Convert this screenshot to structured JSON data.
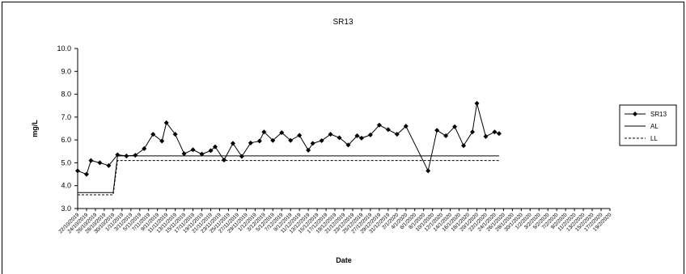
{
  "chart_data": {
    "type": "line",
    "title": "SR13",
    "xlabel": "Date",
    "ylabel": "mg/L",
    "ylim": [
      3.0,
      10.0
    ],
    "ytick_labels": [
      "3.0",
      "4.0",
      "5.0",
      "6.0",
      "7.0",
      "8.0",
      "9.0",
      "10.0"
    ],
    "grid": false,
    "legend_position": "right",
    "categories": [
      "22/10/2019",
      "24/10/2019",
      "26/10/2019",
      "28/10/2019",
      "30/10/2019",
      "1/11/2019",
      "3/11/2019",
      "5/11/2019",
      "7/11/2019",
      "9/11/2019",
      "11/11/2019",
      "13/11/2019",
      "15/11/2019",
      "17/11/2019",
      "19/11/2019",
      "21/11/2019",
      "23/11/2019",
      "25/11/2019",
      "27/11/2019",
      "29/11/2019",
      "1/12/2019",
      "3/12/2019",
      "5/12/2019",
      "7/12/2019",
      "9/12/2019",
      "11/12/2019",
      "13/12/2019",
      "15/12/2019",
      "17/12/2019",
      "19/12/2019",
      "21/12/2019",
      "23/12/2019",
      "25/12/2019",
      "27/12/2019",
      "29/12/2019",
      "31/12/2019",
      "2/1/2020",
      "4/1/2020",
      "6/1/2020",
      "8/1/2020",
      "10/1/2020",
      "12/1/2020",
      "14/1/2020",
      "16/1/2020",
      "18/1/2020",
      "20/1/2020",
      "22/1/2020",
      "24/1/2020",
      "26/1/2020",
      "28/1/2020",
      "30/1/2020",
      "1/2/2020",
      "3/2/2020",
      "5/2/2020",
      "7/2/2020",
      "9/2/2020",
      "11/2/2020",
      "13/2/2020",
      "15/2/2020",
      "17/2/2020",
      "19/2/2020"
    ],
    "series": [
      {
        "name": "SR13",
        "style": "line-diamond",
        "color": "#000000",
        "points": [
          [
            "22/10/2019",
            4.65
          ],
          [
            "24/10/2019",
            4.5
          ],
          [
            "25/10/2019",
            5.1
          ],
          [
            "27/10/2019",
            5.0
          ],
          [
            "29/10/2019",
            4.88
          ],
          [
            "31/10/2019",
            5.35
          ],
          [
            "2/11/2019",
            5.3
          ],
          [
            "4/11/2019",
            5.33
          ],
          [
            "6/11/2019",
            5.62
          ],
          [
            "8/11/2019",
            6.25
          ],
          [
            "10/11/2019",
            5.95
          ],
          [
            "11/11/2019",
            6.75
          ],
          [
            "13/11/2019",
            6.25
          ],
          [
            "15/11/2019",
            5.4
          ],
          [
            "17/11/2019",
            5.57
          ],
          [
            "19/11/2019",
            5.38
          ],
          [
            "21/11/2019",
            5.53
          ],
          [
            "22/11/2019",
            5.7
          ],
          [
            "24/11/2019",
            5.12
          ],
          [
            "26/11/2019",
            5.85
          ],
          [
            "28/11/2019",
            5.28
          ],
          [
            "30/11/2019",
            5.87
          ],
          [
            "2/12/2019",
            5.95
          ],
          [
            "3/12/2019",
            6.35
          ],
          [
            "5/12/2019",
            5.98
          ],
          [
            "7/12/2019",
            6.32
          ],
          [
            "9/12/2019",
            5.98
          ],
          [
            "11/12/2019",
            6.2
          ],
          [
            "13/12/2019",
            5.55
          ],
          [
            "14/12/2019",
            5.85
          ],
          [
            "16/12/2019",
            5.97
          ],
          [
            "18/12/2019",
            6.25
          ],
          [
            "20/12/2019",
            6.1
          ],
          [
            "22/12/2019",
            5.78
          ],
          [
            "24/12/2019",
            6.18
          ],
          [
            "25/12/2019",
            6.08
          ],
          [
            "27/12/2019",
            6.22
          ],
          [
            "29/12/2019",
            6.65
          ],
          [
            "31/12/2019",
            6.45
          ],
          [
            "2/1/2020",
            6.25
          ],
          [
            "4/1/2020",
            6.6
          ],
          [
            "9/1/2020",
            4.65
          ],
          [
            "11/1/2020",
            6.42
          ],
          [
            "13/1/2020",
            6.18
          ],
          [
            "15/1/2020",
            6.58
          ],
          [
            "17/1/2020",
            5.75
          ],
          [
            "19/1/2020",
            6.35
          ],
          [
            "20/1/2020",
            7.6
          ],
          [
            "22/1/2020",
            6.15
          ],
          [
            "24/1/2020",
            6.35
          ],
          [
            "25/1/2020",
            6.28
          ]
        ]
      },
      {
        "name": "AL",
        "style": "solid",
        "color": "#000000",
        "points": [
          [
            "22/10/2019",
            3.7
          ],
          [
            "30/10/2019",
            3.7
          ],
          [
            "31/10/2019",
            5.3
          ],
          [
            "25/1/2020",
            5.3
          ]
        ]
      },
      {
        "name": "LL",
        "style": "dashed",
        "color": "#000000",
        "points": [
          [
            "22/10/2019",
            3.6
          ],
          [
            "30/10/2019",
            3.6
          ],
          [
            "31/10/2019",
            5.1
          ],
          [
            "25/1/2020",
            5.1
          ]
        ]
      }
    ]
  }
}
